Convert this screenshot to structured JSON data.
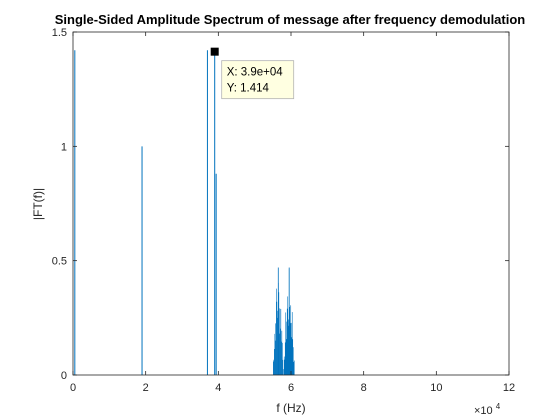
{
  "chart_data": {
    "type": "line",
    "title": "Single-Sided Amplitude Spectrum of message after frequency demodulation",
    "xlabel": "f (Hz)",
    "ylabel": "|FT(f)|",
    "xlim": [
      0,
      120000
    ],
    "ylim": [
      0,
      1.5
    ],
    "x_scale_exponent_base": "×10",
    "x_scale_exponent_power": "4",
    "x_ticks": [
      {
        "value": 0,
        "label": "0"
      },
      {
        "value": 20000,
        "label": "2"
      },
      {
        "value": 40000,
        "label": "4"
      },
      {
        "value": 60000,
        "label": "6"
      },
      {
        "value": 80000,
        "label": "8"
      },
      {
        "value": 100000,
        "label": "10"
      },
      {
        "value": 120000,
        "label": "12"
      }
    ],
    "y_ticks": [
      {
        "value": 0,
        "label": "0"
      },
      {
        "value": 0.5,
        "label": "0.5"
      },
      {
        "value": 1,
        "label": "1"
      },
      {
        "value": 1.5,
        "label": "1.5"
      }
    ],
    "grid": false,
    "line_color": "#0072bd",
    "spikes": [
      {
        "x": 500,
        "y": 1.42
      },
      {
        "x": 19000,
        "y": 1.0
      },
      {
        "x": 37000,
        "y": 1.42
      },
      {
        "x": 39000,
        "y": 1.414
      },
      {
        "x": 39400,
        "y": 0.88
      }
    ],
    "bands": [
      {
        "x_start": 55000,
        "x_end": 58000,
        "peak": 0.47
      },
      {
        "x_start": 58000,
        "x_end": 61000,
        "peak": 0.47
      }
    ],
    "datatip": {
      "x": 39000,
      "y": 1.414,
      "x_text": "X: 3.9e+04",
      "y_text": "Y: 1.414"
    }
  }
}
